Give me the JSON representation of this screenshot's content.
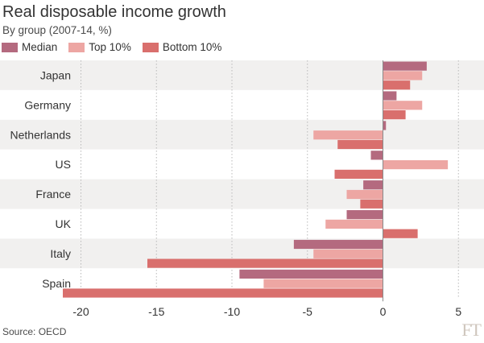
{
  "chart_data": {
    "type": "bar",
    "orientation": "horizontal",
    "title": "Real disposable income growth",
    "subtitle": "By group (2007-14, %)",
    "categories": [
      "Japan",
      "Germany",
      "Netherlands",
      "US",
      "France",
      "UK",
      "Italy",
      "Spain"
    ],
    "series": [
      {
        "name": "Median",
        "color": "#b46a7f",
        "values": [
          2.9,
          0.9,
          0.2,
          -0.8,
          -1.3,
          -2.4,
          -5.9,
          -9.5
        ]
      },
      {
        "name": "Top 10%",
        "color": "#eda6a3",
        "values": [
          2.6,
          2.6,
          -4.6,
          4.3,
          -2.4,
          -3.8,
          -4.6,
          -7.9
        ]
      },
      {
        "name": "Bottom 10%",
        "color": "#d96f6d",
        "values": [
          1.8,
          1.5,
          -3.0,
          -3.2,
          -1.5,
          2.3,
          -15.6,
          -21.2
        ]
      }
    ],
    "xlim": [
      -21.2,
      5.2
    ],
    "xticks": [
      -20,
      -15,
      -10,
      -5,
      0,
      5
    ],
    "xtick_labels": [
      "-20",
      "-15",
      "-10",
      "-5",
      "0",
      "5"
    ],
    "grid": "vertical dotted",
    "legend_position": "top-left",
    "band_colors": [
      "#f1f0ef",
      "#ffffff"
    ],
    "source": "Source: OECD",
    "brand": "FT"
  }
}
